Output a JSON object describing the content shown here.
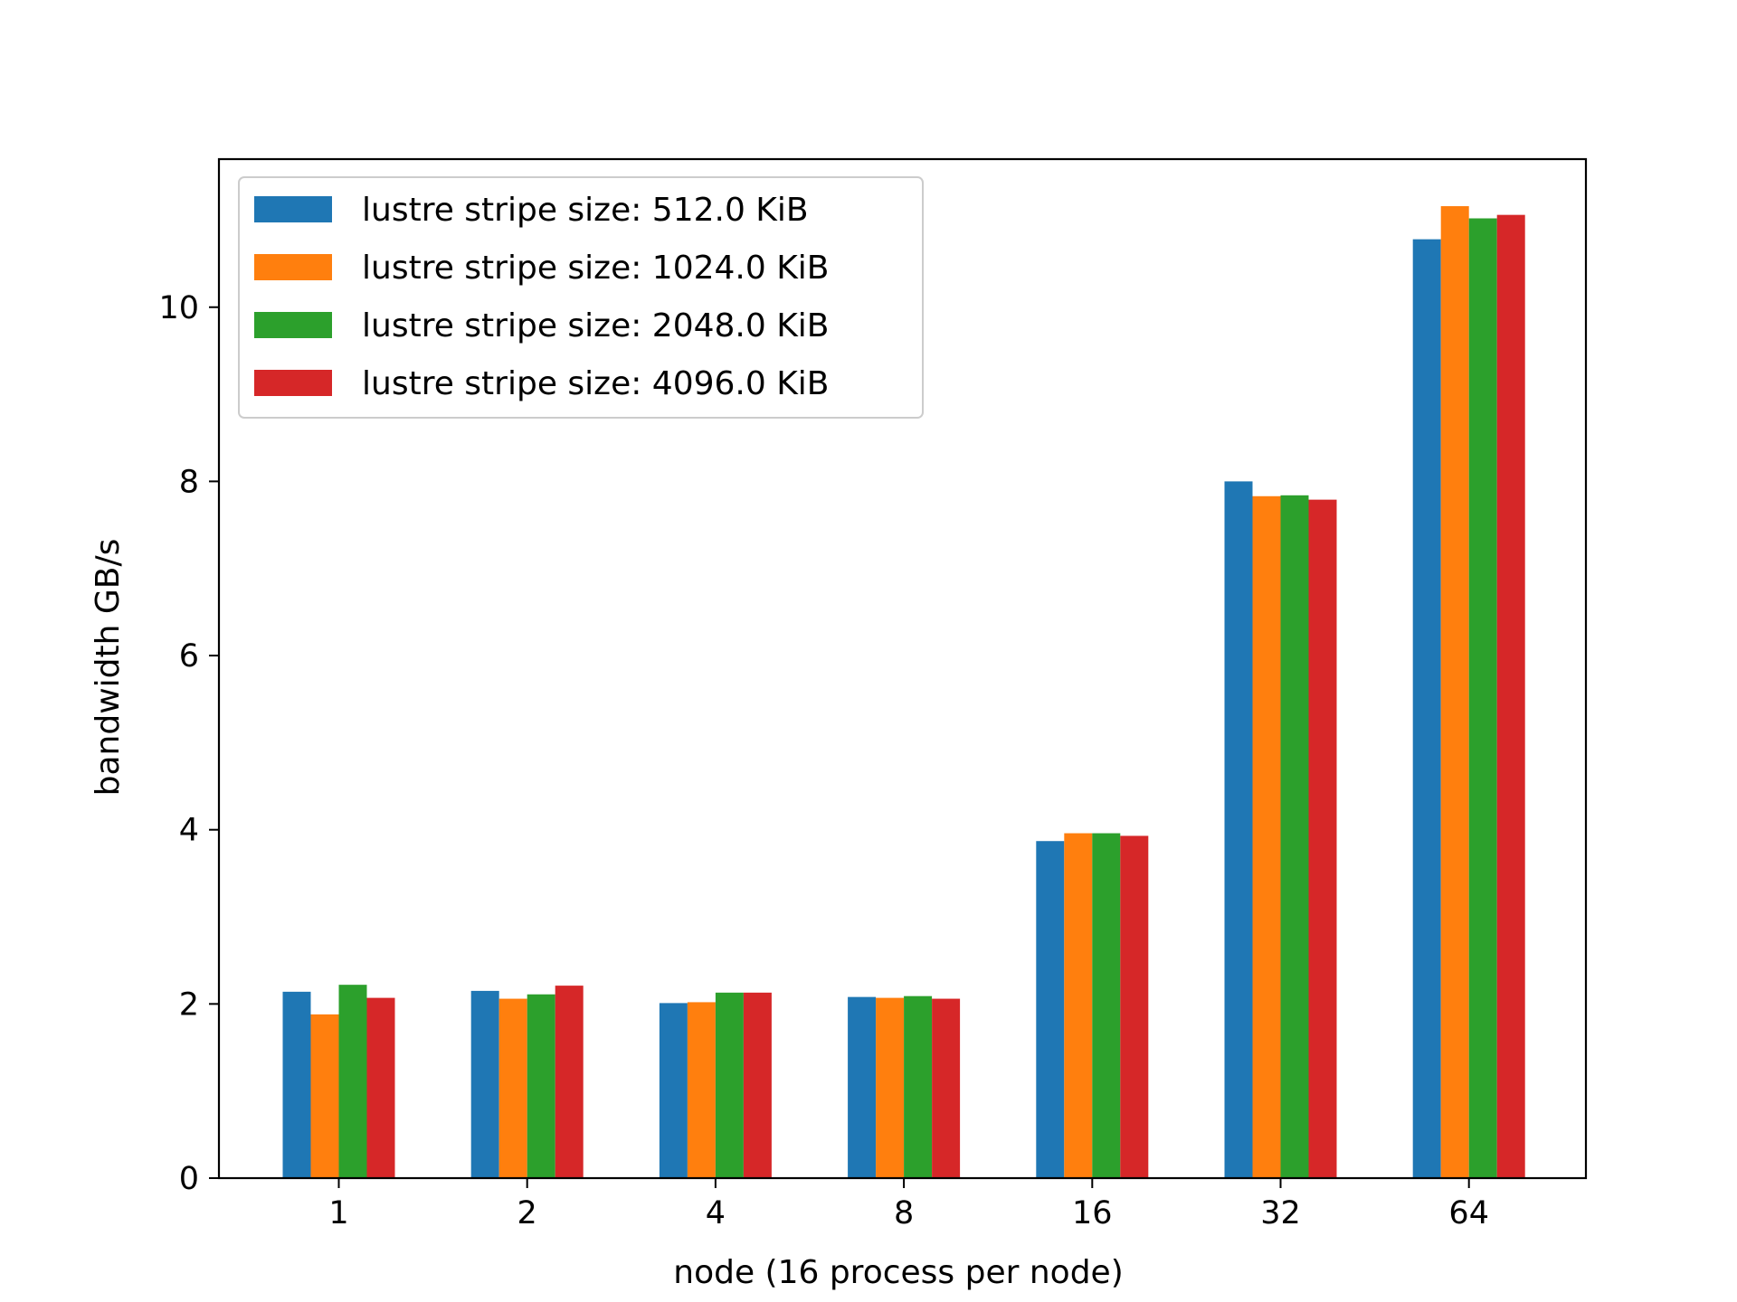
{
  "chart_data": {
    "type": "bar",
    "title": "",
    "xlabel": "node (16 process per node)",
    "ylabel": "bandwidth GB/s",
    "categories": [
      "1",
      "2",
      "4",
      "8",
      "16",
      "32",
      "64"
    ],
    "ylim": [
      0,
      11.7
    ],
    "yticks": [
      0,
      2,
      4,
      6,
      8,
      10
    ],
    "grid": false,
    "legend_position": "top-left",
    "series": [
      {
        "name": "lustre stripe size: 512.0 KiB",
        "color": "#1f77b4",
        "values": [
          2.14,
          2.15,
          2.01,
          2.08,
          3.87,
          8.0,
          10.78
        ]
      },
      {
        "name": "lustre stripe size: 1024.0 KiB",
        "color": "#ff7f0e",
        "values": [
          1.88,
          2.06,
          2.02,
          2.07,
          3.96,
          7.83,
          11.16
        ]
      },
      {
        "name": "lustre stripe size: 2048.0 KiB",
        "color": "#2ca02c",
        "values": [
          2.22,
          2.11,
          2.13,
          2.09,
          3.96,
          7.84,
          11.02
        ]
      },
      {
        "name": "lustre stripe size: 4096.0 KiB",
        "color": "#d62728",
        "values": [
          2.07,
          2.21,
          2.13,
          2.06,
          3.93,
          7.79,
          11.06
        ]
      }
    ]
  }
}
